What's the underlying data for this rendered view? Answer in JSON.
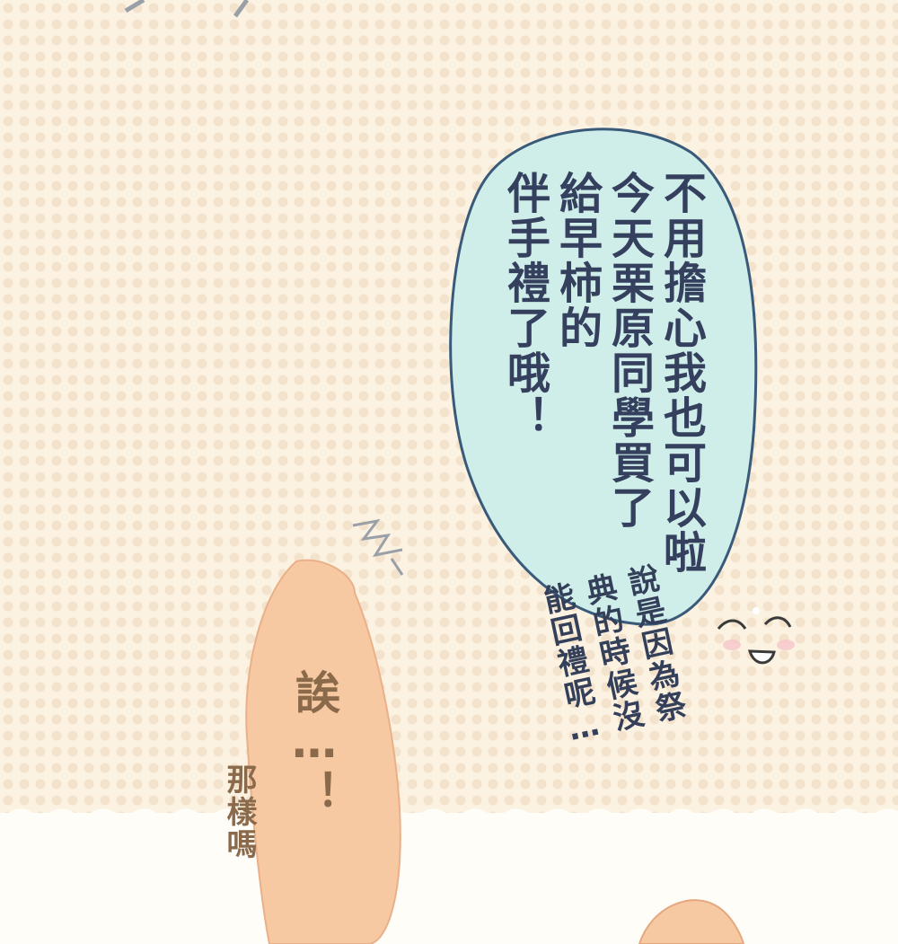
{
  "speech_bubble": {
    "columns": [
      "不用擔心我也可以啦",
      "今天栗原同學買了",
      "給早柿的",
      "伴手禮了哦！"
    ]
  },
  "side_text": {
    "columns": [
      "說是因為祭",
      "典的時候沒",
      "能回禮呢…"
    ]
  },
  "exclaim_bubble": {
    "text": "誒…！"
  },
  "small_caption": {
    "text": "那樣嗎"
  },
  "colors": {
    "bubble_fill": "#cfeeea",
    "bubble_stroke": "#3a5a7a",
    "exclaim_fill": "#f7c9a2",
    "background": "#fcf2e2"
  }
}
